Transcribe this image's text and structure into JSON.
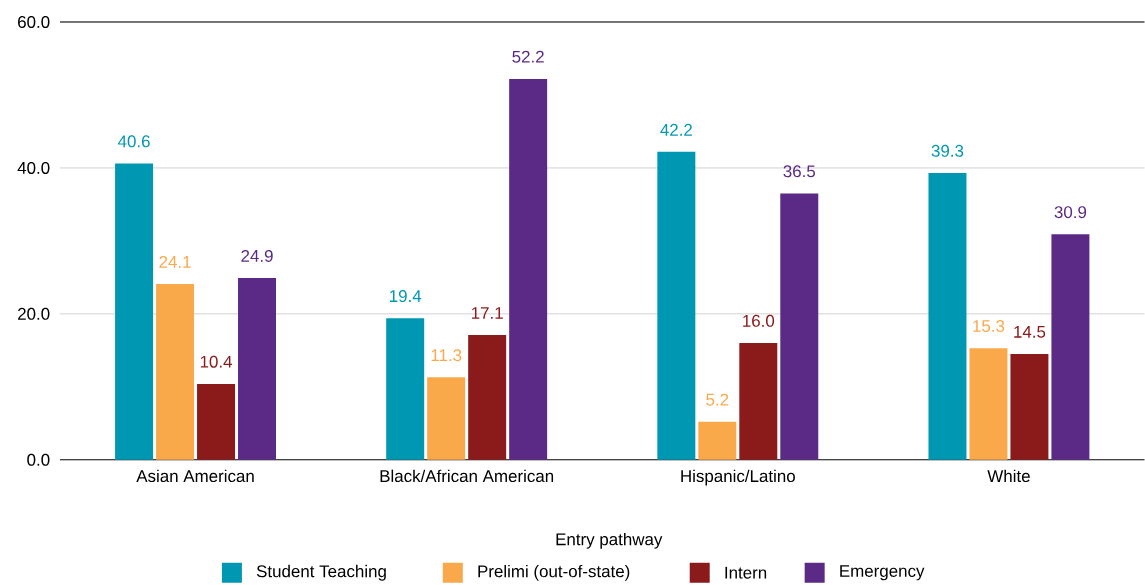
{
  "chart_data": {
    "type": "bar",
    "xlabel": "Entry pathway",
    "categories": [
      "Asian American",
      "Black/African American",
      "Hispanic/Latino",
      "White"
    ],
    "series": [
      {
        "name": "Student Teaching",
        "color": "#0097b2",
        "values": [
          40.6,
          19.4,
          42.2,
          39.3
        ],
        "value_labels": [
          "40.6",
          "19.4",
          "42.2",
          "39.3"
        ]
      },
      {
        "name": "Prelimi (out-of-state)",
        "color": "#f9a84a",
        "values": [
          24.1,
          11.3,
          5.2,
          15.3
        ],
        "value_labels": [
          "24.1",
          "11.3",
          "5.2",
          "15.3"
        ]
      },
      {
        "name": "Intern",
        "color": "#8b1a1a",
        "values": [
          10.4,
          17.1,
          16.0,
          14.5
        ],
        "value_labels": [
          "10.4",
          "17.1",
          "16.0",
          "14.5"
        ]
      },
      {
        "name": "Emergency",
        "color": "#5b2a86",
        "values": [
          24.9,
          52.2,
          36.5,
          30.9
        ],
        "value_labels": [
          "24.9",
          "52.2",
          "36.5",
          "30.9"
        ]
      }
    ],
    "ylim": [
      0,
      60
    ],
    "yticks": [
      {
        "value": 0,
        "label": "0.0"
      },
      {
        "value": 20,
        "label": "20.0"
      },
      {
        "value": 40,
        "label": "40.0"
      },
      {
        "value": 60,
        "label": "60.0"
      }
    ],
    "grid": "y",
    "legend": "bottom"
  }
}
